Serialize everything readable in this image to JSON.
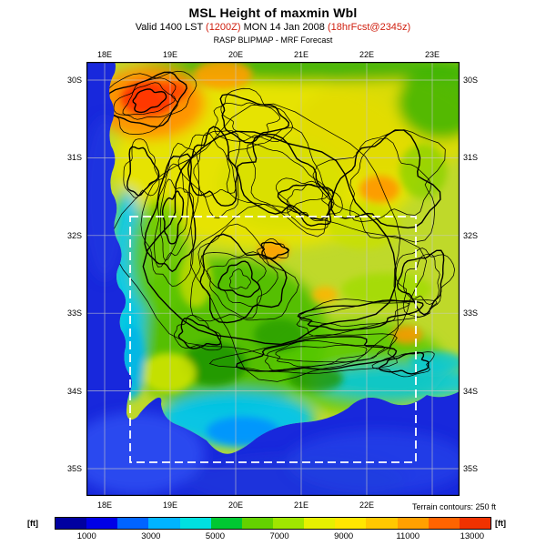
{
  "header": {
    "title": "MSL Height of maxmin Wbl",
    "valid": {
      "prefix": "Valid 1400 LST ",
      "issue_z": "(1200Z)",
      "date": " MON 14 Jan 2008 ",
      "fcst": "(18hrFcst@2345z)"
    },
    "model_line": "RASP BLIPMAP - MRF Forecast"
  },
  "map": {
    "top_lon_labels": [
      "18E",
      "19E",
      "20E",
      "21E",
      "22E",
      "23E"
    ],
    "bottom_lon_labels": [
      "18E",
      "19E",
      "20E",
      "21E",
      "22E"
    ],
    "left_lat_labels": [
      "30S",
      "31S",
      "32S",
      "33S",
      "34S",
      "35S"
    ],
    "right_lat_labels": [
      "30S",
      "31S",
      "32S",
      "33S",
      "34S",
      "35S"
    ]
  },
  "colorbar": {
    "unit_left": "[ft]",
    "unit_right": "[ft]",
    "note": "Terrain contours: 250 ft",
    "ticks": [
      "1000",
      "3000",
      "5000",
      "7000",
      "9000",
      "11000",
      "13000"
    ],
    "segment_colors": [
      "#0000A0",
      "#0000E6",
      "#0064FF",
      "#00B4FF",
      "#00E0E0",
      "#00C832",
      "#64D200",
      "#A0E600",
      "#E6F000",
      "#FFE600",
      "#FFC800",
      "#FFA000",
      "#FF6400",
      "#F03200"
    ]
  },
  "colors": {
    "highlight_red": "#D02010",
    "ocean_blue": "#1828DC",
    "land_base": "#BFD92A",
    "domain_boundary": "#FFFFFF"
  },
  "chart_data": {
    "type": "heatmap",
    "title": "MSL Height of maxmin Wbl",
    "colorbar_unit": "ft",
    "colorbar_ticks": [
      1000,
      3000,
      5000,
      7000,
      9000,
      11000,
      13000
    ],
    "lon_ticks": [
      "18E",
      "19E",
      "20E",
      "21E",
      "22E",
      "23E"
    ],
    "lat_ticks": [
      "30S",
      "31S",
      "32S",
      "33S",
      "34S",
      "35S"
    ],
    "annotation": "Terrain contours: 250 ft",
    "legend_position": "bottom"
  }
}
